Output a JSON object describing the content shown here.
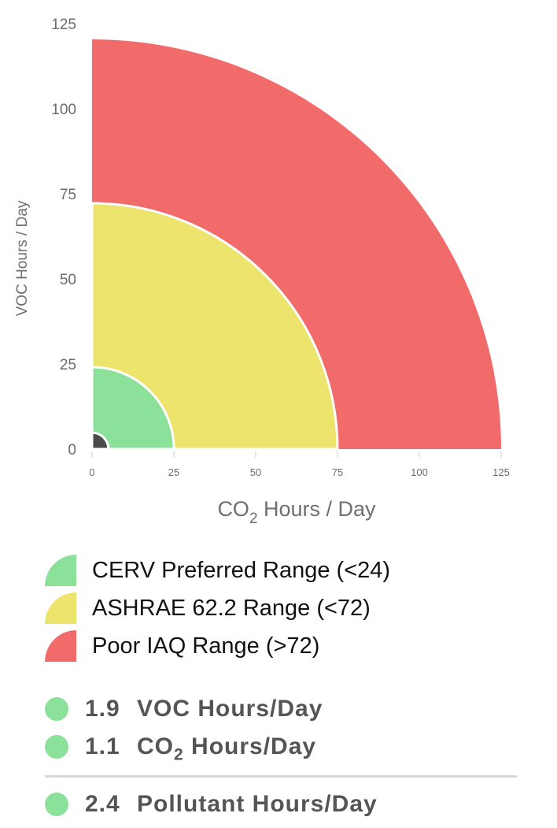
{
  "chart_data": {
    "type": "area",
    "shape": "quarter-circle bands",
    "x_axis": {
      "label_prefix": "CO",
      "label_sub": "2",
      "label_suffix": " Hours / Day",
      "range": [
        0,
        125
      ],
      "ticks": [
        0,
        25,
        50,
        75,
        100,
        125
      ]
    },
    "y_axis": {
      "label": "VOC Hours / Day",
      "range": [
        0,
        125
      ],
      "ticks": [
        0,
        25,
        50,
        75,
        100,
        125
      ]
    },
    "bands": [
      {
        "name": "Poor IAQ Range (>72)",
        "radius": 125,
        "color": "#f26b6b"
      },
      {
        "name": "ASHRAE 62.2 Range (<72)",
        "radius": 75,
        "color": "#ede46e"
      },
      {
        "name": "CERV Preferred Range (<24)",
        "radius": 25,
        "color": "#8be09a"
      }
    ],
    "marker": {
      "radius": 5,
      "color": "#4a4a4a"
    },
    "grid": false
  },
  "legend": [
    {
      "label": "CERV Preferred Range (<24)",
      "color": "#8be09a"
    },
    {
      "label": "ASHRAE 62.2 Range (<72)",
      "color": "#ede46e"
    },
    {
      "label": "Poor IAQ Range (>72)",
      "color": "#f26b6b"
    }
  ],
  "stats": {
    "voc": {
      "value": "1.9",
      "label": "VOC Hours/Day",
      "status_color": "#8be09a"
    },
    "co2": {
      "value": "1.1",
      "label_prefix": "CO",
      "label_sub": "2",
      "label_suffix": " Hours/Day",
      "status_color": "#8be09a"
    },
    "pollutant": {
      "value": "2.4",
      "label": "Pollutant Hours/Day",
      "status_color": "#8be09a"
    }
  }
}
